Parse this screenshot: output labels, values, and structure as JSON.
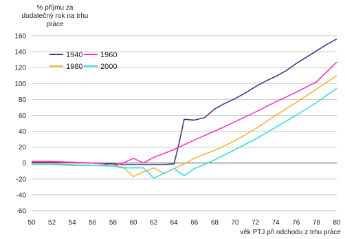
{
  "chart_data": {
    "type": "line",
    "ylabel_lines": [
      "% příjmu za",
      "dodatečný rok na trhu",
      "práce"
    ],
    "xlabel": "věk PTJ při odchodu z trhu práce",
    "x_ticks": [
      50,
      52,
      54,
      56,
      58,
      60,
      62,
      64,
      66,
      68,
      70,
      72,
      74,
      76,
      78,
      80
    ],
    "y_ticks": [
      160,
      140,
      120,
      100,
      80,
      60,
      40,
      20,
      0,
      -20,
      -40,
      -60
    ],
    "xlim": [
      50,
      80
    ],
    "ylim": [
      -60,
      160
    ],
    "grid": "horizontal",
    "legend_position": "top-left",
    "series": [
      {
        "name": "1940",
        "color": "#3a3a8c",
        "points": [
          [
            50,
            1
          ],
          [
            52,
            1
          ],
          [
            54,
            1
          ],
          [
            56,
            0
          ],
          [
            58,
            -1
          ],
          [
            59,
            -2
          ],
          [
            60,
            -2
          ],
          [
            61,
            -2
          ],
          [
            62,
            -2
          ],
          [
            63,
            -2
          ],
          [
            64,
            -1
          ],
          [
            64.5,
            25
          ],
          [
            65,
            55
          ],
          [
            66,
            54
          ],
          [
            67,
            57
          ],
          [
            68,
            68
          ],
          [
            69,
            75
          ],
          [
            70,
            81
          ],
          [
            71,
            88
          ],
          [
            72,
            96
          ],
          [
            73,
            103
          ],
          [
            74,
            109
          ],
          [
            75,
            116
          ],
          [
            76,
            125
          ],
          [
            77,
            133
          ],
          [
            78,
            141
          ],
          [
            79,
            149
          ],
          [
            80,
            156
          ]
        ]
      },
      {
        "name": "1960",
        "color": "#ff33cc",
        "points": [
          [
            50,
            2
          ],
          [
            52,
            2
          ],
          [
            54,
            1
          ],
          [
            56,
            0
          ],
          [
            57,
            -1
          ],
          [
            58,
            -4
          ],
          [
            59,
            0
          ],
          [
            60,
            6
          ],
          [
            61,
            0
          ],
          [
            62,
            7
          ],
          [
            64,
            17
          ],
          [
            66,
            29
          ],
          [
            68,
            40
          ],
          [
            70,
            52
          ],
          [
            72,
            64
          ],
          [
            74,
            77
          ],
          [
            76,
            89
          ],
          [
            78,
            102
          ],
          [
            80,
            127
          ]
        ]
      },
      {
        "name": "1980",
        "color": "#f4b730",
        "points": [
          [
            50,
            -1
          ],
          [
            52,
            -1
          ],
          [
            54,
            -2
          ],
          [
            56,
            -3
          ],
          [
            58,
            -3
          ],
          [
            59,
            -5
          ],
          [
            60,
            -17
          ],
          [
            61,
            -11
          ],
          [
            62,
            -6
          ],
          [
            63,
            -13
          ],
          [
            64,
            -7
          ],
          [
            65,
            -1
          ],
          [
            66,
            6
          ],
          [
            68,
            16
          ],
          [
            70,
            28
          ],
          [
            72,
            43
          ],
          [
            74,
            60
          ],
          [
            76,
            76
          ],
          [
            78,
            93
          ],
          [
            80,
            110
          ]
        ]
      },
      {
        "name": "2000",
        "color": "#33e0e6",
        "points": [
          [
            50,
            -2
          ],
          [
            52,
            -2
          ],
          [
            54,
            -3
          ],
          [
            56,
            -3
          ],
          [
            58,
            -4
          ],
          [
            59,
            -6
          ],
          [
            61,
            -6
          ],
          [
            62,
            -19
          ],
          [
            63,
            -13
          ],
          [
            64,
            -7
          ],
          [
            65,
            -16
          ],
          [
            66,
            -7
          ],
          [
            67,
            -2
          ],
          [
            68,
            4
          ],
          [
            70,
            17
          ],
          [
            72,
            30
          ],
          [
            74,
            45
          ],
          [
            76,
            60
          ],
          [
            78,
            76
          ],
          [
            80,
            94
          ]
        ]
      }
    ]
  }
}
